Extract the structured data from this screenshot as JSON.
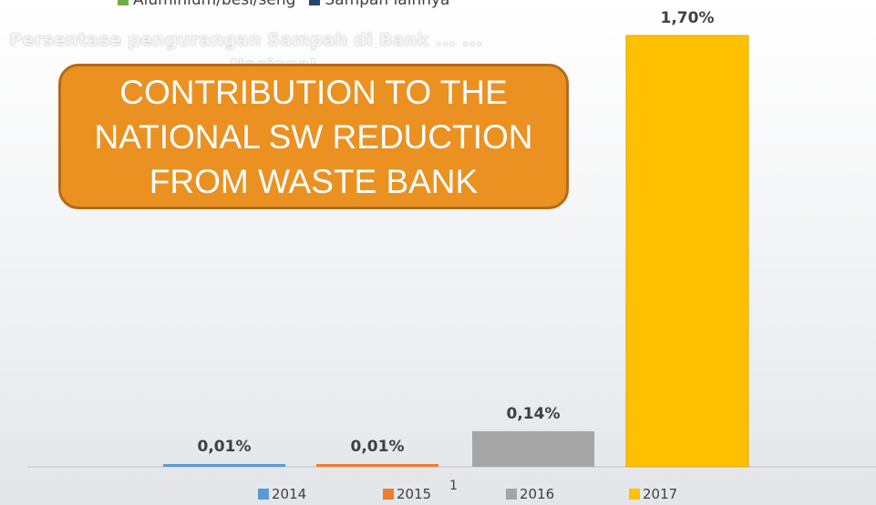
{
  "top_legend": [
    {
      "label": "Aluminium/besi/seng",
      "color": "#70ad47"
    },
    {
      "label": "Sampah lainnya",
      "color": "#264478"
    }
  ],
  "subtitle": "Persentase pengurangan Sampah di Bank ... ... ... ... Nasional",
  "callout": {
    "text": "CONTRIBUTION TO  THE\nNATIONAL SW REDUCTION\nFROM WASTE BANK",
    "color": "#ea9122"
  },
  "page_number": "1",
  "chart_data": {
    "type": "bar",
    "categories": [
      "2014",
      "2015",
      "2016",
      "2017"
    ],
    "values": [
      0.01,
      0.01,
      0.14,
      1.7
    ],
    "data_labels": [
      "0,01%",
      "0,01%",
      "0,14%",
      "1,70%"
    ],
    "colors": [
      "#5b9bd5",
      "#ed7d31",
      "#a5a5a5",
      "#ffc000"
    ],
    "ylim": [
      0,
      1.7
    ],
    "unit": "%",
    "legend_position": "bottom",
    "grid": false
  }
}
